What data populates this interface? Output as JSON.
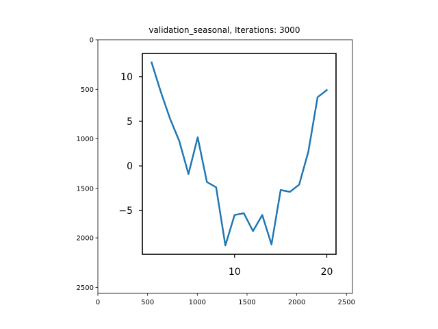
{
  "chart_data": {
    "type": "line",
    "title": "validation_seasonal, Iterations: 3000",
    "outer_axes": {
      "xlim": [
        0,
        2560
      ],
      "ylim": [
        2560,
        0
      ],
      "xticks": [
        0,
        500,
        1000,
        1500,
        2000,
        2500
      ],
      "yticks": [
        0,
        500,
        1000,
        1500,
        2000,
        2500
      ]
    },
    "inset": {
      "xlim": [
        0,
        21
      ],
      "ylim": [
        -9.9,
        12.6
      ],
      "xticks": [
        10,
        20
      ],
      "yticks": [
        10,
        5,
        0,
        -5
      ],
      "ytick_labels": [
        "10",
        "5",
        "0",
        "−5"
      ],
      "grid": false,
      "series": [
        {
          "color": "#1f77b4",
          "x": [
            1,
            2,
            3,
            4,
            5,
            6,
            7,
            8,
            9,
            10,
            11,
            12,
            13,
            14,
            15,
            16,
            17,
            18,
            19,
            20
          ],
          "y": [
            11.6,
            8.3,
            5.3,
            2.8,
            -0.9,
            3.2,
            -1.8,
            -2.4,
            -8.9,
            -5.5,
            -5.3,
            -7.3,
            -5.5,
            -8.8,
            -2.7,
            -2.9,
            -2.1,
            1.6,
            7.7,
            8.5
          ]
        }
      ]
    }
  }
}
